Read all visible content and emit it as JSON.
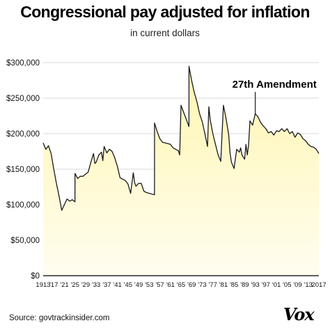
{
  "header": {
    "title": "Congressional pay adjusted for inflation",
    "subtitle": "in current dollars"
  },
  "footer": {
    "source": "Source: govtrackinsider.com",
    "brand": "Vox"
  },
  "colors": {
    "line": "#1a1a1a",
    "area_top": "#fff6b0",
    "area_bottom": "#fffdf0",
    "gridline": "#d9d9d9",
    "axis": "#000000"
  },
  "chart_data": {
    "type": "area",
    "title": "Congressional pay adjusted for inflation",
    "subtitle": "in current dollars",
    "xlabel": "",
    "ylabel": "",
    "xlim": [
      1913,
      2017
    ],
    "ylim": [
      0,
      300000
    ],
    "grid": "horizontal",
    "y_ticks": [
      0,
      50000,
      100000,
      150000,
      200000,
      250000,
      300000
    ],
    "y_tick_labels": [
      "$0",
      "$50,000",
      "$100,000",
      "$150,000",
      "$200,000",
      "$250,000",
      "$300,000"
    ],
    "x_ticks": [
      1913,
      1917,
      1921,
      1925,
      1929,
      1933,
      1937,
      1941,
      1945,
      1949,
      1953,
      1957,
      1961,
      1965,
      1969,
      1973,
      1977,
      1981,
      1985,
      1989,
      1993,
      1997,
      2001,
      2005,
      2009,
      2013,
      2017
    ],
    "x_tick_labels": [
      "1913",
      "'17",
      "'21",
      "'25",
      "'29",
      "'33",
      "'37",
      "'41",
      "'45",
      "'49",
      "'53",
      "'57",
      "'61",
      "'65",
      "'69",
      "'73",
      "'77",
      "'81",
      "'85",
      "'89",
      "'93",
      "'97",
      "'01",
      "'05",
      "'09",
      "'13",
      "2017"
    ],
    "annotations": [
      {
        "text": "27th Amendment",
        "x": 1993,
        "y": 228000
      }
    ],
    "series": [
      {
        "x": [
          1913,
          1914,
          1915,
          1916,
          1917,
          1918,
          1919,
          1920,
          1921,
          1922,
          1923,
          1924,
          1925,
          1925.01,
          1926,
          1927,
          1928,
          1929,
          1930,
          1931,
          1932,
          1932.5,
          1933,
          1934,
          1935,
          1935.5,
          1936,
          1937,
          1938,
          1939,
          1940,
          1941,
          1942,
          1943,
          1944,
          1945,
          1946,
          1947,
          1947.5,
          1948,
          1949,
          1950,
          1951,
          1952,
          1953,
          1954,
          1955,
          1955.01,
          1956,
          1957,
          1958,
          1959,
          1960,
          1961,
          1962,
          1963,
          1964,
          1964.5,
          1965,
          1966,
          1967,
          1968,
          1968.01,
          1969,
          1970,
          1971,
          1972,
          1973,
          1974,
          1975,
          1975.5,
          1976,
          1977,
          1978,
          1979,
          1980,
          1981,
          1982,
          1983,
          1983.5,
          1984,
          1985,
          1986,
          1987,
          1987.5,
          1988,
          1989,
          1989.5,
          1990,
          1990.5,
          1991,
          1992,
          1993,
          1994,
          1995,
          1996,
          1997,
          1998,
          1999,
          2000,
          2001,
          2002,
          2003,
          2004,
          2005,
          2006,
          2007,
          2008,
          2009,
          2010,
          2011,
          2012,
          2013,
          2014,
          2015,
          2016,
          2017
        ],
        "y": [
          187000,
          178000,
          183000,
          172000,
          150000,
          130000,
          112000,
          92000,
          100000,
          108000,
          105000,
          107000,
          104000,
          144000,
          137000,
          140000,
          140000,
          143000,
          146000,
          160000,
          172000,
          158000,
          160000,
          170000,
          174000,
          162000,
          182000,
          173000,
          178000,
          175000,
          166000,
          154000,
          138000,
          136000,
          134000,
          129000,
          116000,
          145000,
          131000,
          126000,
          130000,
          130000,
          119000,
          117000,
          116000,
          115000,
          114000,
          215000,
          203000,
          193000,
          188000,
          187000,
          186000,
          185000,
          180000,
          178000,
          176000,
          170000,
          240000,
          230000,
          220000,
          210000,
          295000,
          275000,
          258000,
          245000,
          228000,
          217000,
          200000,
          182000,
          238000,
          220000,
          200000,
          185000,
          170000,
          161000,
          240000,
          221000,
          198000,
          173000,
          160000,
          151000,
          178000,
          174000,
          180000,
          170000,
          164000,
          185000,
          170000,
          184000,
          218000,
          212000,
          228000,
          224000,
          216000,
          211000,
          207000,
          201000,
          203000,
          198000,
          204000,
          203000,
          207000,
          203000,
          207000,
          200000,
          203000,
          195000,
          201000,
          199000,
          193000,
          190000,
          185000,
          182000,
          181000,
          178000,
          172000
        ]
      }
    ]
  }
}
